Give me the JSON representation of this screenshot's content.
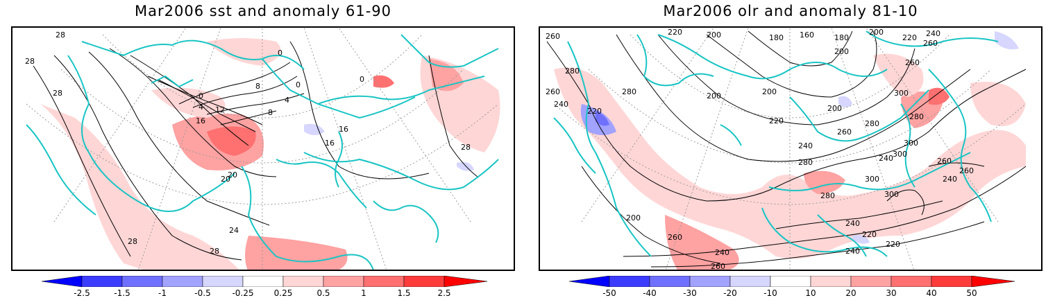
{
  "panels": [
    {
      "title": "Mar2006 sst and anomaly 61-90",
      "contour_labels": [
        "28",
        "28",
        "28",
        "28",
        "20",
        "0",
        "0",
        "0",
        "4",
        "8",
        "12",
        "16",
        "16",
        "16",
        "20",
        "24",
        "28",
        "28",
        "8",
        "4",
        "0"
      ],
      "colorbar": {
        "labels": [
          "-2.5",
          "-1.5",
          "-1",
          "-0.5",
          "-0.25",
          "0.25",
          "0.5",
          "1",
          "1.5",
          "2.5"
        ]
      }
    },
    {
      "title": "Mar2006 olr and anomaly 81-10",
      "contour_labels": [
        "260",
        "220",
        "200",
        "180",
        "160",
        "180",
        "200",
        "220",
        "240",
        "200",
        "260",
        "280",
        "280",
        "260",
        "240",
        "220",
        "200",
        "200",
        "200",
        "300",
        "260",
        "280",
        "220",
        "240",
        "260",
        "280",
        "300",
        "260",
        "240",
        "300",
        "280",
        "300",
        "260",
        "240",
        "280",
        "240",
        "200",
        "260",
        "240",
        "260",
        "240",
        "220",
        "220",
        "300"
      ],
      "colorbar": {
        "labels": [
          "-50",
          "-40",
          "-30",
          "-20",
          "-10",
          "10",
          "20",
          "30",
          "40",
          "50"
        ]
      }
    }
  ],
  "colors": {
    "coast": "#19c4c4",
    "contour": "#000000",
    "grid": "#9a9a9a",
    "colorbar_steps": [
      "#0000ff",
      "#3c3cff",
      "#7070ff",
      "#a2a2ff",
      "#d6d6ff",
      "#ffffff",
      "#ffd6d6",
      "#ffa2a2",
      "#ff7070",
      "#ff3c3c",
      "#ff0000"
    ]
  }
}
